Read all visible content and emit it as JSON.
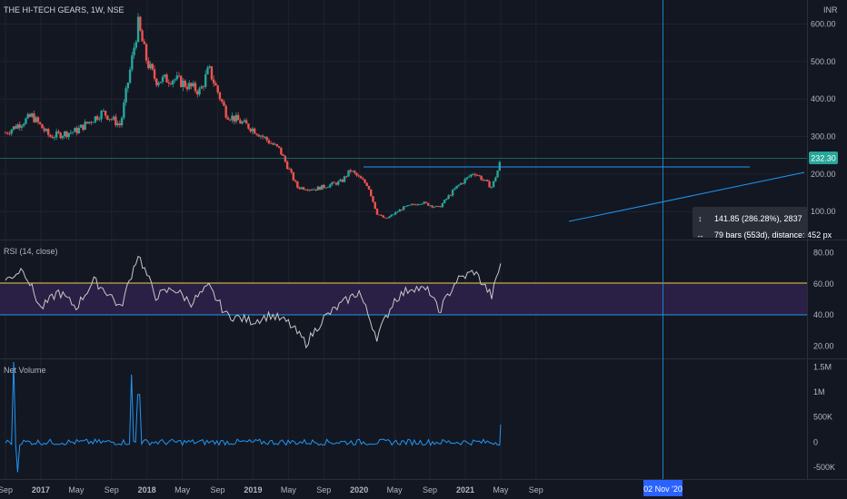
{
  "header": {
    "symbol_title": "THE HI-TECH GEARS, 1W, NSE",
    "currency": "INR"
  },
  "colors": {
    "background": "#131722",
    "grid": "#1f2330",
    "up": "#26a69a",
    "down": "#ef5350",
    "trendline": "#2196f3",
    "rsi_line": "#c8c8c8",
    "rsi_band": "#2a1f44",
    "rsi_upper": "#e6d545",
    "rsi_lower": "#2196f3",
    "net_volume": "#2196f3",
    "price_tag": "#26a69a",
    "crosshair_tag": "#2962ff",
    "measure_box": "#2a2e39"
  },
  "chart_data": [
    {
      "type": "candlestick",
      "pane": "price",
      "title": "THE HI-TECH GEARS, 1W, NSE",
      "ylabel": "INR",
      "y_ticks": [
        "600.00",
        "500.00",
        "400.00",
        "300.00",
        "200.00",
        "100.00"
      ],
      "ylim": [
        40,
        640
      ],
      "last_price": "232.30",
      "x_ticks": [
        "Sep",
        "2017",
        "May",
        "Sep",
        "2018",
        "May",
        "Sep",
        "2019",
        "May",
        "Sep",
        "2020",
        "May",
        "Sep",
        "2021",
        "May",
        "Sep"
      ],
      "key_points": [
        {
          "x": "Sep 2016",
          "y": 310
        },
        {
          "x": "Dec 2016",
          "y": 355
        },
        {
          "x": "Feb 2017",
          "y": 300
        },
        {
          "x": "May 2017",
          "y": 315
        },
        {
          "x": "Aug 2017",
          "y": 365
        },
        {
          "x": "Oct 2017",
          "y": 330
        },
        {
          "x": "Dec 2017",
          "y": 600
        },
        {
          "x": "Jan 2018",
          "y": 500
        },
        {
          "x": "Feb 2018",
          "y": 450
        },
        {
          "x": "Apr 2018",
          "y": 455
        },
        {
          "x": "Jul 2018",
          "y": 420
        },
        {
          "x": "Aug 2018",
          "y": 480
        },
        {
          "x": "Oct 2018",
          "y": 360
        },
        {
          "x": "Jan 2019",
          "y": 320
        },
        {
          "x": "Apr 2019",
          "y": 265
        },
        {
          "x": "Jun 2019",
          "y": 165
        },
        {
          "x": "Aug 2019",
          "y": 160
        },
        {
          "x": "Nov 2019",
          "y": 180
        },
        {
          "x": "Dec 2019",
          "y": 210
        },
        {
          "x": "Feb 2020",
          "y": 170
        },
        {
          "x": "Mar 2020",
          "y": 95
        },
        {
          "x": "Apr 2020",
          "y": 80
        },
        {
          "x": "Jun 2020",
          "y": 110
        },
        {
          "x": "Aug 2020",
          "y": 125
        },
        {
          "x": "Oct 2020",
          "y": 110
        },
        {
          "x": "Dec 2020",
          "y": 165
        },
        {
          "x": "Feb 2021",
          "y": 205
        },
        {
          "x": "Apr 2021",
          "y": 165
        },
        {
          "x": "May 2021",
          "y": 232.3
        }
      ],
      "measure": {
        "line1": "141.85 (286.28%), 2837",
        "line2": "79 bars (553d), distance: 452 px"
      }
    },
    {
      "type": "line",
      "pane": "rsi",
      "title": "RSI (14, close)",
      "y_ticks": [
        "80.00",
        "60.00",
        "40.00",
        "20.00"
      ],
      "ylim": [
        14,
        86
      ],
      "levels": {
        "upper": 60,
        "lower": 40
      },
      "key_points": [
        {
          "x": "Sep 2016",
          "y": 62
        },
        {
          "x": "Nov 2016",
          "y": 70
        },
        {
          "x": "Jan 2017",
          "y": 44
        },
        {
          "x": "Mar 2017",
          "y": 55
        },
        {
          "x": "May 2017",
          "y": 45
        },
        {
          "x": "Jul 2017",
          "y": 62
        },
        {
          "x": "Sep 2017",
          "y": 52
        },
        {
          "x": "Oct 2017",
          "y": 44
        },
        {
          "x": "Dec 2017",
          "y": 79
        },
        {
          "x": "Feb 2018",
          "y": 52
        },
        {
          "x": "Apr 2018",
          "y": 57
        },
        {
          "x": "Jun 2018",
          "y": 48
        },
        {
          "x": "Aug 2018",
          "y": 58
        },
        {
          "x": "Oct 2018",
          "y": 40
        },
        {
          "x": "Jan 2019",
          "y": 36
        },
        {
          "x": "Mar 2019",
          "y": 40
        },
        {
          "x": "May 2019",
          "y": 35
        },
        {
          "x": "Jul 2019",
          "y": 22
        },
        {
          "x": "Sep 2019",
          "y": 38
        },
        {
          "x": "Nov 2019",
          "y": 47
        },
        {
          "x": "Jan 2020",
          "y": 55
        },
        {
          "x": "Mar 2020",
          "y": 26
        },
        {
          "x": "May 2020",
          "y": 50
        },
        {
          "x": "Jul 2020",
          "y": 58
        },
        {
          "x": "Sep 2020",
          "y": 55
        },
        {
          "x": "Oct 2020",
          "y": 42
        },
        {
          "x": "Dec 2020",
          "y": 62
        },
        {
          "x": "Feb 2021",
          "y": 68
        },
        {
          "x": "Apr 2021",
          "y": 52
        },
        {
          "x": "May 2021",
          "y": 73
        }
      ]
    },
    {
      "type": "line",
      "pane": "net_volume",
      "title": "Net Volume",
      "y_ticks": [
        "1.5M",
        "1M",
        "500K",
        "0",
        "-500K"
      ],
      "ylim": [
        -700000,
        1600000
      ],
      "key_points": [
        {
          "x": "Sep 2016",
          "y": 0
        },
        {
          "x": "Oct 2016",
          "y": 1600000
        },
        {
          "x": "Oct 2016",
          "y": -600000
        },
        {
          "x": "Dec 2016",
          "y": 50000
        },
        {
          "x": "Jun 2017",
          "y": 150000
        },
        {
          "x": "Nov 2017",
          "y": 1350000
        },
        {
          "x": "Dec 2017",
          "y": 950000
        },
        {
          "x": "Feb 2018",
          "y": 50000
        },
        {
          "x": "Dec 2019",
          "y": 0
        },
        {
          "x": "Oct 2020",
          "y": 30000
        },
        {
          "x": "Apr 2021",
          "y": 80000
        },
        {
          "x": "May 2021",
          "y": 350000
        }
      ]
    }
  ],
  "crosshair": {
    "date_label": "02 Nov '20"
  }
}
